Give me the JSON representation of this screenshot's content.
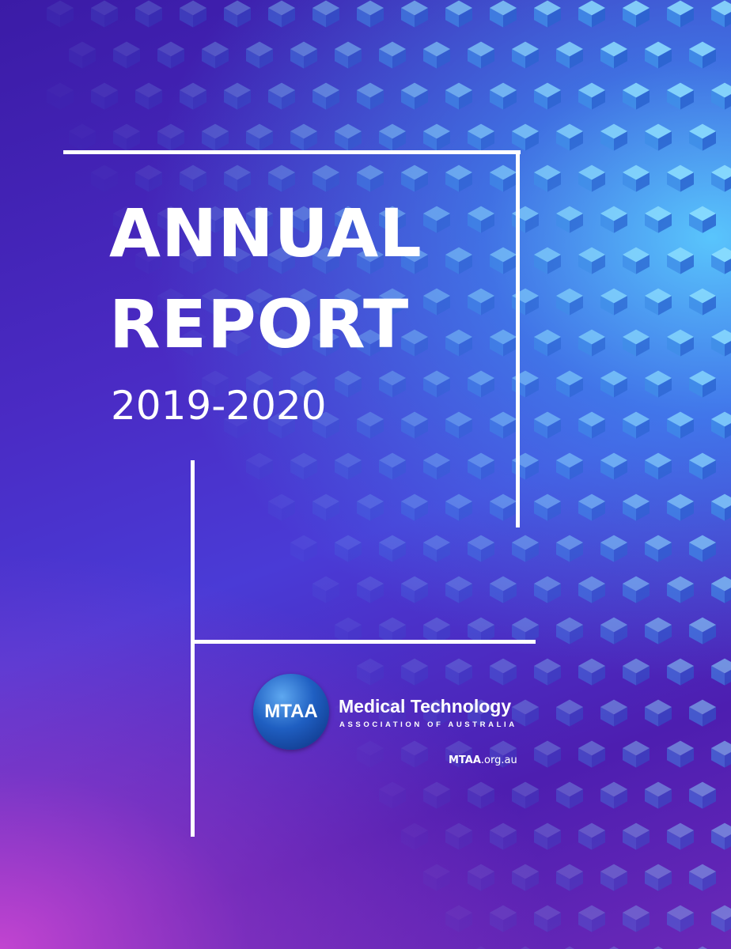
{
  "cover": {
    "title_line1": "ANNUAL",
    "title_line2": "REPORT",
    "year": "2019-2020"
  },
  "logo": {
    "abbr": "MTAA",
    "name": "Medical Technology",
    "subtitle": "ASSOCIATION OF AUSTRALIA"
  },
  "website": {
    "domain_bold": "MTAA",
    "domain_rest": ".org.au"
  },
  "colors": {
    "accent_top": "#5acdff",
    "accent_bottom": "#c846d2",
    "base": "#4a2bc4",
    "frame": "#ffffff"
  }
}
